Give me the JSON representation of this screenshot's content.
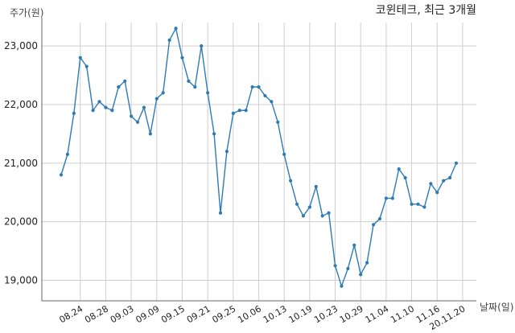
{
  "chart_data": {
    "type": "line",
    "title": "코윈테크, 최근 3개월",
    "ylabel": "주가(원)",
    "xlabel": "날짜(일)",
    "ylim": [
      18650,
      23400
    ],
    "yticks": [
      19000,
      20000,
      21000,
      22000,
      23000
    ],
    "ytick_labels": [
      "19,000",
      "20,000",
      "21,000",
      "22,000",
      "23,000"
    ],
    "xtick_labels": [
      "08.24",
      "08.28",
      "09.03",
      "09.09",
      "09.15",
      "09.21",
      "09.25",
      "10.06",
      "10.13",
      "10.19",
      "10.23",
      "10.29",
      "11.04",
      "11.10",
      "11.16",
      "20.11.20"
    ],
    "xtick_index": [
      3,
      7,
      11,
      15,
      19,
      23,
      27,
      31,
      35,
      39,
      43,
      47,
      51,
      55,
      59,
      63
    ],
    "grid": true,
    "line_color": "#2e7bb4",
    "series": [
      {
        "name": "",
        "values": [
          20800,
          21150,
          21850,
          22800,
          22650,
          21900,
          22050,
          21950,
          21900,
          22300,
          22400,
          21800,
          21700,
          21950,
          21500,
          22100,
          22200,
          23100,
          23300,
          22800,
          22400,
          22300,
          23000,
          22200,
          21500,
          20150,
          21200,
          21850,
          21900,
          21900,
          22300,
          22300,
          22150,
          22050,
          21700,
          21150,
          20700,
          20300,
          20100,
          20250,
          20600,
          20100,
          20150,
          19250,
          18900,
          19200,
          19600,
          19100,
          19300,
          19950,
          20050,
          20400,
          20400,
          20900,
          20750,
          20300,
          20300,
          20250,
          20650,
          20500,
          20700,
          20750,
          21000
        ]
      }
    ]
  }
}
